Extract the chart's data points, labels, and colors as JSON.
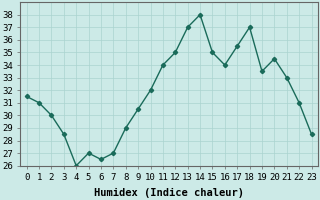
{
  "x": [
    0,
    1,
    2,
    3,
    4,
    5,
    6,
    7,
    8,
    9,
    10,
    11,
    12,
    13,
    14,
    15,
    16,
    17,
    18,
    19,
    20,
    21,
    22,
    23
  ],
  "y": [
    31.5,
    31.0,
    30.0,
    28.5,
    26.0,
    27.0,
    26.5,
    27.0,
    29.0,
    30.5,
    32.0,
    34.0,
    35.0,
    37.0,
    38.0,
    35.0,
    34.0,
    35.5,
    37.0,
    33.5,
    34.5,
    33.0,
    31.0,
    28.5
  ],
  "line_color": "#1a6b5a",
  "marker": "D",
  "marker_size": 2.2,
  "bg_color": "#cceae7",
  "grid_color": "#aad4d0",
  "xlabel": "Humidex (Indice chaleur)",
  "xlim": [
    -0.5,
    23.5
  ],
  "ylim": [
    26,
    39
  ],
  "yticks": [
    26,
    27,
    28,
    29,
    30,
    31,
    32,
    33,
    34,
    35,
    36,
    37,
    38
  ],
  "xtick_labels": [
    "0",
    "1",
    "2",
    "3",
    "4",
    "5",
    "6",
    "7",
    "8",
    "9",
    "10",
    "11",
    "12",
    "13",
    "14",
    "15",
    "16",
    "17",
    "18",
    "19",
    "20",
    "21",
    "22",
    "23"
  ],
  "tick_fontsize": 6.5,
  "xlabel_fontsize": 7.5,
  "line_width": 1.0
}
